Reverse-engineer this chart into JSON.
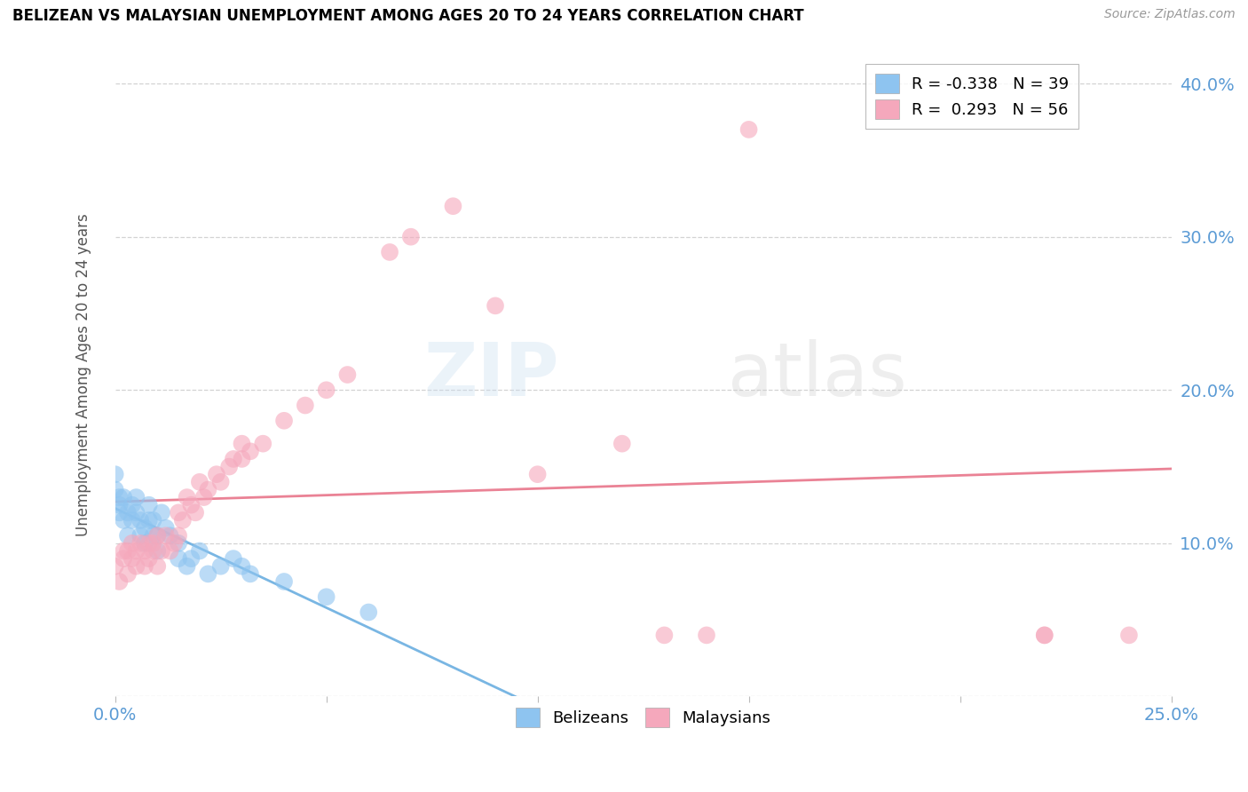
{
  "title": "BELIZEAN VS MALAYSIAN UNEMPLOYMENT AMONG AGES 20 TO 24 YEARS CORRELATION CHART",
  "source": "Source: ZipAtlas.com",
  "xlim": [
    0.0,
    0.25
  ],
  "ylim": [
    0.0,
    0.42
  ],
  "belizean_color": "#8ec4f0",
  "malaysian_color": "#f5a8bc",
  "trendline_blue": "#6aaee0",
  "trendline_pink": "#e8758a",
  "belizean_R": -0.338,
  "belizean_N": 39,
  "malaysian_R": 0.293,
  "malaysian_N": 56,
  "belizean_x": [
    0.0,
    0.0,
    0.001,
    0.001,
    0.001,
    0.002,
    0.002,
    0.003,
    0.003,
    0.004,
    0.004,
    0.005,
    0.005,
    0.006,
    0.006,
    0.007,
    0.007,
    0.008,
    0.008,
    0.009,
    0.009,
    0.01,
    0.01,
    0.011,
    0.012,
    0.013,
    0.015,
    0.015,
    0.017,
    0.018,
    0.02,
    0.022,
    0.025,
    0.028,
    0.03,
    0.032,
    0.04,
    0.05,
    0.06
  ],
  "belizean_y": [
    0.145,
    0.135,
    0.13,
    0.125,
    0.12,
    0.115,
    0.13,
    0.12,
    0.105,
    0.125,
    0.115,
    0.13,
    0.12,
    0.115,
    0.105,
    0.11,
    0.1,
    0.125,
    0.115,
    0.105,
    0.115,
    0.105,
    0.095,
    0.12,
    0.11,
    0.105,
    0.09,
    0.1,
    0.085,
    0.09,
    0.095,
    0.08,
    0.085,
    0.09,
    0.085,
    0.08,
    0.075,
    0.065,
    0.055
  ],
  "malaysian_x": [
    0.0,
    0.001,
    0.002,
    0.002,
    0.003,
    0.003,
    0.004,
    0.004,
    0.005,
    0.005,
    0.006,
    0.007,
    0.007,
    0.008,
    0.008,
    0.009,
    0.009,
    0.01,
    0.01,
    0.011,
    0.012,
    0.013,
    0.014,
    0.015,
    0.015,
    0.016,
    0.017,
    0.018,
    0.019,
    0.02,
    0.021,
    0.022,
    0.024,
    0.025,
    0.027,
    0.028,
    0.03,
    0.03,
    0.032,
    0.035,
    0.04,
    0.045,
    0.05,
    0.055,
    0.065,
    0.07,
    0.08,
    0.09,
    0.1,
    0.12,
    0.13,
    0.14,
    0.15,
    0.22,
    0.22,
    0.24
  ],
  "malaysian_y": [
    0.085,
    0.075,
    0.09,
    0.095,
    0.08,
    0.095,
    0.09,
    0.1,
    0.085,
    0.095,
    0.1,
    0.095,
    0.085,
    0.1,
    0.09,
    0.1,
    0.095,
    0.085,
    0.105,
    0.095,
    0.105,
    0.095,
    0.1,
    0.12,
    0.105,
    0.115,
    0.13,
    0.125,
    0.12,
    0.14,
    0.13,
    0.135,
    0.145,
    0.14,
    0.15,
    0.155,
    0.165,
    0.155,
    0.16,
    0.165,
    0.18,
    0.19,
    0.2,
    0.21,
    0.29,
    0.3,
    0.32,
    0.255,
    0.145,
    0.165,
    0.04,
    0.04,
    0.37,
    0.04,
    0.04,
    0.04
  ]
}
